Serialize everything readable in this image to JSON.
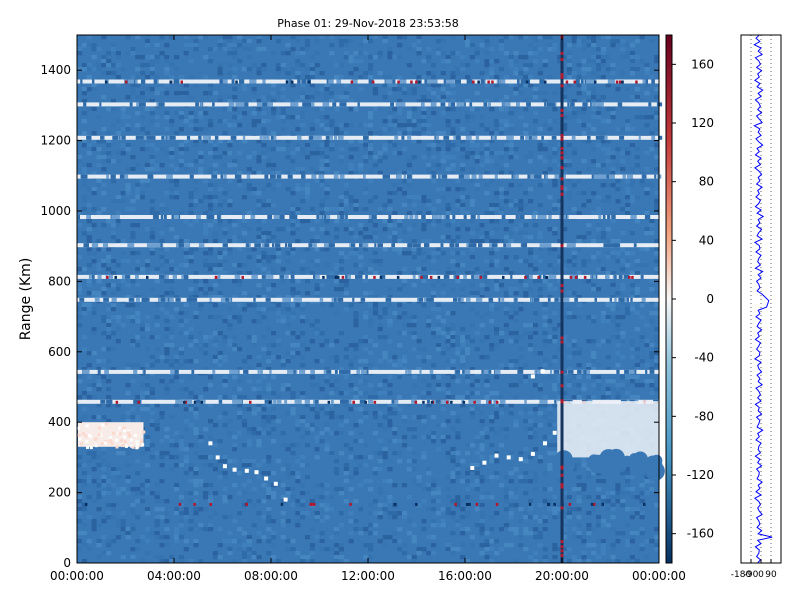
{
  "chart_data": [
    {
      "type": "heatmap",
      "title": "Phase 01: 29-Nov-2018 23:53:58",
      "xlabel": "",
      "ylabel": "Range (Km)",
      "x_ticks": [
        "00:00:00",
        "04:00:00",
        "08:00:00",
        "12:00:00",
        "16:00:00",
        "20:00:00",
        "00:00:00"
      ],
      "y_ticks": [
        0,
        200,
        400,
        600,
        800,
        1000,
        1200,
        1400
      ],
      "xlim_hours": [
        0,
        24
      ],
      "ylim": [
        0,
        1500
      ],
      "grid": false,
      "colormap": "RdBu_r",
      "colorbar": {
        "ticks": [
          160,
          120,
          80,
          40,
          0,
          -40,
          -80,
          -120,
          -160
        ],
        "range": [
          -180,
          180
        ]
      },
      "features": {
        "bright_range_bands_km": [
          1365,
          1300,
          1205,
          1095,
          980,
          900,
          810,
          745,
          540,
          455
        ],
        "white_patch_km": [
          330,
          400
        ],
        "white_patch_hours": [
          0,
          2.7
        ],
        "vertical_line_hour": 20.0,
        "red_speckle_band_km": [
          1365,
          810,
          455,
          165
        ],
        "tracer_points": [
          {
            "x": 5.5,
            "y": 340
          },
          {
            "x": 5.8,
            "y": 300
          },
          {
            "x": 6.1,
            "y": 275
          },
          {
            "x": 6.5,
            "y": 265
          },
          {
            "x": 7.0,
            "y": 262
          },
          {
            "x": 7.4,
            "y": 258
          },
          {
            "x": 7.8,
            "y": 240
          },
          {
            "x": 8.2,
            "y": 225
          },
          {
            "x": 8.6,
            "y": 180
          },
          {
            "x": 16.3,
            "y": 270
          },
          {
            "x": 16.8,
            "y": 285
          },
          {
            "x": 17.3,
            "y": 305
          },
          {
            "x": 17.8,
            "y": 300
          },
          {
            "x": 18.3,
            "y": 295
          },
          {
            "x": 18.8,
            "y": 310
          },
          {
            "x": 19.3,
            "y": 340
          },
          {
            "x": 19.7,
            "y": 370
          },
          {
            "x": 18.8,
            "y": 530
          },
          {
            "x": 19.2,
            "y": 545
          }
        ]
      }
    },
    {
      "type": "line",
      "title": "",
      "xlabel": "",
      "ylabel": "",
      "x_ticks": [
        "-180",
        "-90",
        "0",
        "90"
      ],
      "xlim": [
        -180,
        180
      ],
      "ylim": [
        0,
        1500
      ],
      "series": [
        {
          "values": [
            5,
            -25,
            10,
            -40,
            20,
            -5,
            30,
            -30,
            0,
            15,
            -20,
            25,
            -10,
            5,
            -35,
            10,
            -15,
            35,
            -5,
            20,
            -30,
            0,
            15,
            -10,
            25,
            -20,
            5,
            30,
            -40,
            10,
            -5,
            20,
            -25,
            0,
            35,
            -15,
            5,
            -30,
            20,
            -10,
            15,
            -35,
            0,
            25,
            -5,
            10,
            -20,
            30,
            -10,
            5,
            -25,
            15,
            0,
            -30,
            20,
            -15,
            40,
            -5,
            10,
            -20,
            25,
            0,
            -15,
            30,
            -35,
            5,
            10,
            -25,
            20,
            0,
            -10,
            15,
            -30,
            35,
            -5,
            20,
            -20,
            0,
            10,
            -15,
            30,
            60,
            90,
            80,
            70,
            -5,
            10,
            -25,
            20,
            0,
            -15,
            25,
            -10,
            5,
            -30,
            15,
            0,
            -20,
            10,
            5,
            -35,
            20,
            -10,
            0,
            25,
            -15,
            10,
            -5,
            30,
            -25,
            0,
            15,
            -10,
            20,
            -30,
            5,
            -5,
            25,
            -20,
            10,
            0,
            -15,
            35,
            -10,
            5,
            -25,
            20,
            0,
            -5,
            15,
            -30,
            10,
            -10,
            25,
            -20,
            5,
            0,
            -15,
            30,
            -5,
            10,
            -25,
            20,
            -35,
            0,
            15,
            -10,
            5,
            30,
            -20,
            0,
            10,
            -15,
            25,
            -5,
            120,
            -10,
            20,
            -30,
            5,
            0,
            -20,
            15,
            -10
          ]
        }
      ]
    }
  ]
}
